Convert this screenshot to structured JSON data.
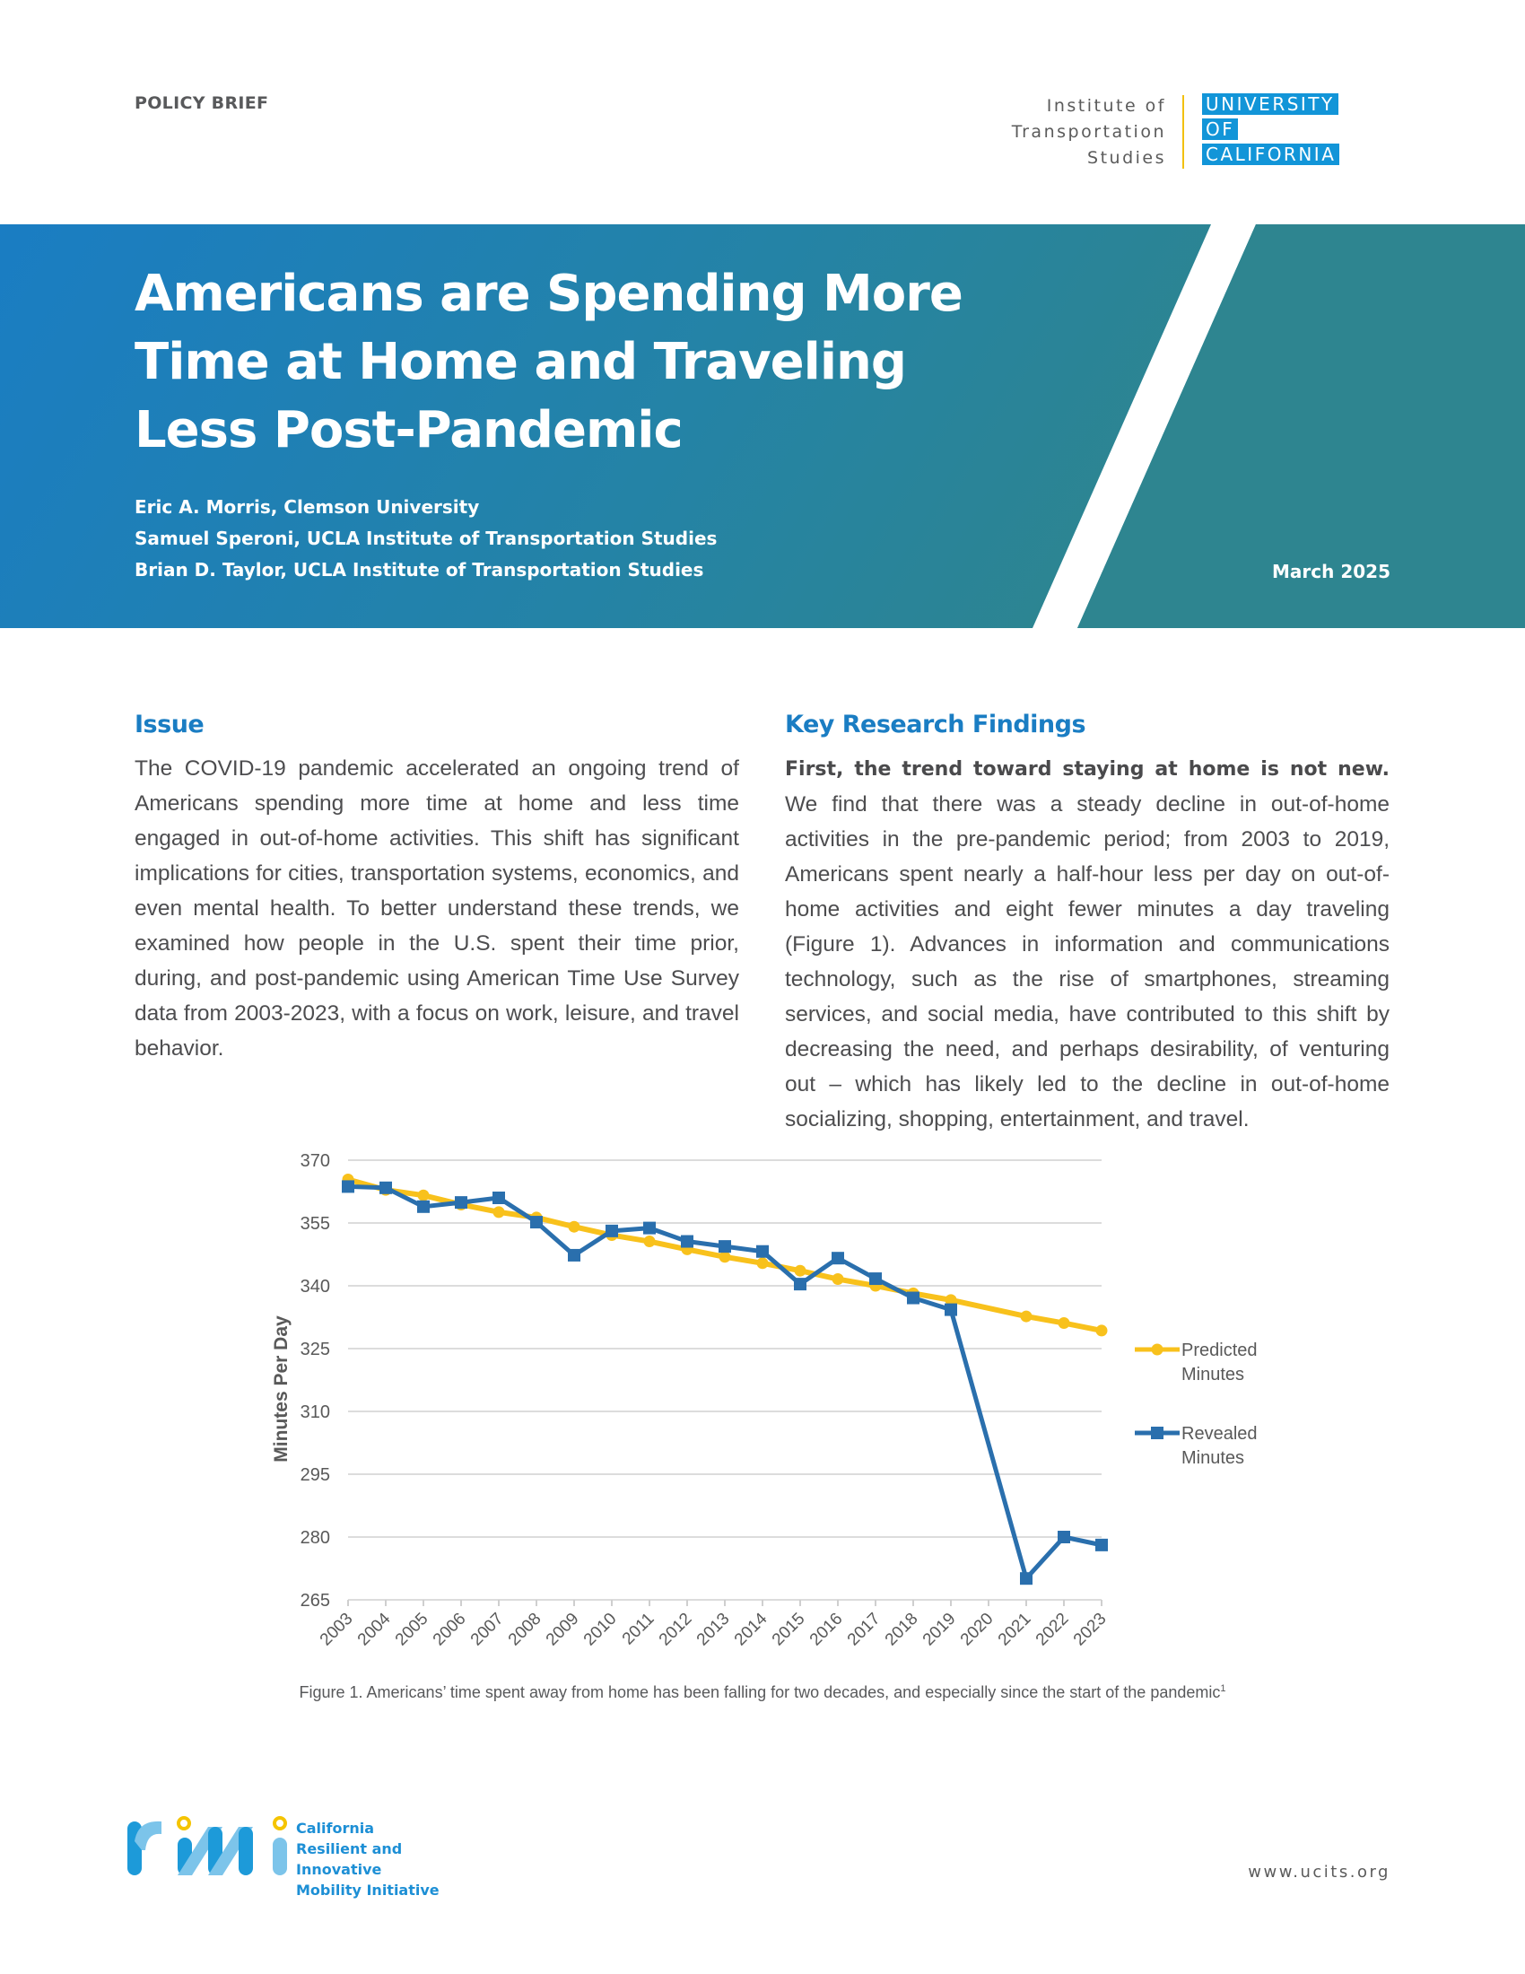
{
  "header": {
    "label": "POLICY BRIEF",
    "its_logo": [
      "Institute of",
      "Transportation",
      "Studies"
    ],
    "uc_logo": [
      "UNIVERSITY",
      "OF",
      "CALIFORNIA"
    ]
  },
  "banner": {
    "title": "Americans are Spending More Time at Home and Traveling Less Post-Pandemic",
    "authors": [
      "Eric A. Morris, Clemson University",
      "Samuel Speroni, UCLA Institute of Transportation Studies",
      "Brian D. Taylor, UCLA Institute of Transportation Studies"
    ],
    "date": "March 2025",
    "colors": {
      "gradient_start": "#1a7dc3",
      "gradient_end": "#2e8590"
    }
  },
  "issue": {
    "heading": "Issue",
    "body": "The COVID-19 pandemic accelerated an ongoing trend of Americans spending more time at home and less time engaged in out-of-home activities. This shift has significant implications for cities, transportation systems, economics, and even mental health. To better understand these trends, we examined how people in the U.S. spent their time prior, during, and post-pandemic using American Time Use Survey data from 2003-2023, with a focus on work, leisure, and travel behavior."
  },
  "findings": {
    "heading": "Key Research Findings",
    "lead": "First, the trend toward staying at home is not new.",
    "body": " We find that there was a steady decline in out-of-home activities in the pre-pandemic period; from 2003 to 2019, Americans spent nearly a half-hour less per day on out-of-home activities and eight fewer minutes a day traveling (Figure 1). Advances in information and communications technology, such as the rise of smartphones, streaming services, and social media, have contributed to this shift by decreasing the need, and perhaps desirability, of venturing out – which has likely led to the decline in out-of-home socializing, shopping, entertainment, and travel."
  },
  "chart_data": {
    "type": "line",
    "title": "",
    "xlabel": "",
    "ylabel": "Minutes Per Day",
    "x": [
      "2003",
      "2004",
      "2005",
      "2006",
      "2007",
      "2008",
      "2009",
      "2010",
      "2011",
      "2012",
      "2013",
      "2014",
      "2015",
      "2016",
      "2017",
      "2018",
      "2019",
      "2020",
      "2021",
      "2022",
      "2023"
    ],
    "ylim": [
      265,
      370
    ],
    "yticks": [
      265,
      280,
      295,
      310,
      325,
      340,
      355,
      370
    ],
    "grid": true,
    "legend_position": "right",
    "series": [
      {
        "name": "Predicted Minutes",
        "color": "#f8c11c",
        "marker": "circle",
        "values": [
          365.4,
          362.9,
          361.6,
          359.4,
          357.6,
          356.3,
          354.1,
          352.1,
          350.6,
          348.7,
          346.9,
          345.4,
          343.6,
          341.6,
          340.0,
          338.2,
          336.6,
          null,
          332.7,
          331.1,
          329.3
        ]
      },
      {
        "name": "Revealed Minutes",
        "color": "#2a6fad",
        "marker": "square",
        "values": [
          363.7,
          363.4,
          358.9,
          359.9,
          361.0,
          355.2,
          347.3,
          353.1,
          353.8,
          350.6,
          349.4,
          348.2,
          340.4,
          346.6,
          341.7,
          337.1,
          334.3,
          null,
          270.1,
          280.0,
          278.1
        ]
      }
    ]
  },
  "figure": {
    "caption": "Figure 1. Americans’ time spent away from home has been falling for two decades, and especially since the start of the pandemic",
    "footnote_mark": "1"
  },
  "footer": {
    "rmi_lines": [
      "California",
      "Resilient and Innovative",
      "Mobility Initiative"
    ],
    "url": "www.ucits.org"
  }
}
